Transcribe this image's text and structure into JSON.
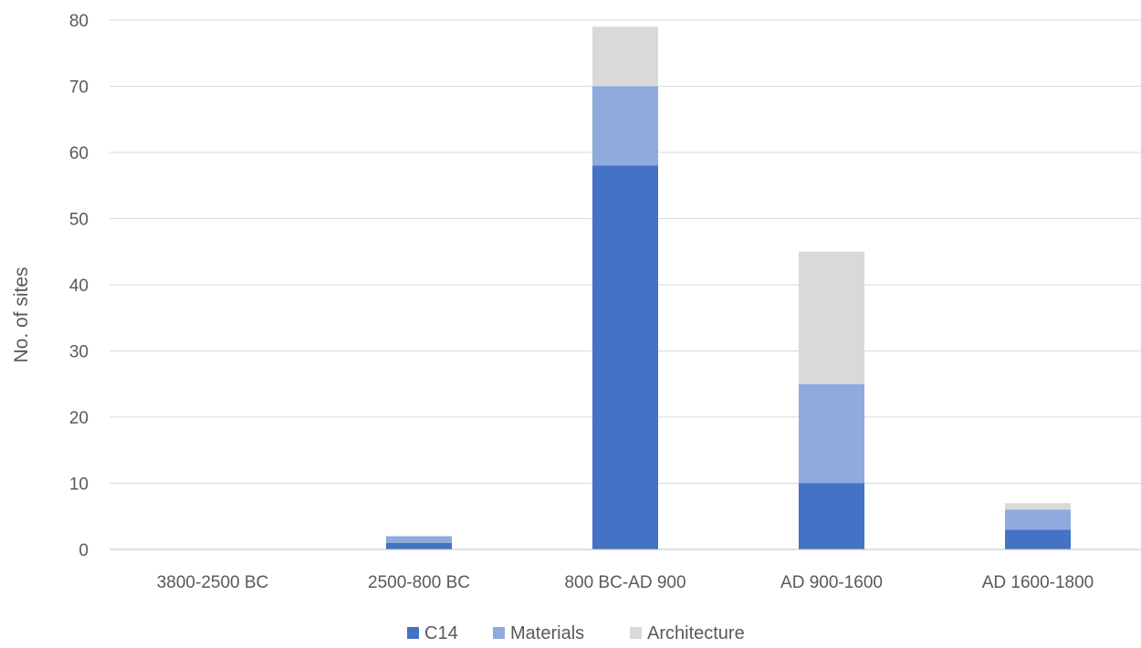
{
  "chart_data": {
    "type": "bar",
    "stacked": true,
    "title": "",
    "xlabel": "",
    "ylabel": "No. of sites",
    "ylim": [
      0,
      80
    ],
    "yticks": [
      0,
      10,
      20,
      30,
      40,
      50,
      60,
      70,
      80
    ],
    "grid": true,
    "legend": "bottom",
    "categories": [
      "3800-2500 BC",
      "2500-800 BC",
      "800 BC-AD 900",
      "AD 900-1600",
      "AD 1600-1800"
    ],
    "series": [
      {
        "name": "C14",
        "color": "#4472C4",
        "values": [
          0,
          1,
          58,
          10,
          3
        ]
      },
      {
        "name": "Materials",
        "color": "#8FAADC",
        "values": [
          0,
          1,
          12,
          15,
          3
        ]
      },
      {
        "name": "Architecture",
        "color": "#D9D9D9",
        "values": [
          0,
          0,
          9,
          20,
          1
        ]
      }
    ]
  }
}
